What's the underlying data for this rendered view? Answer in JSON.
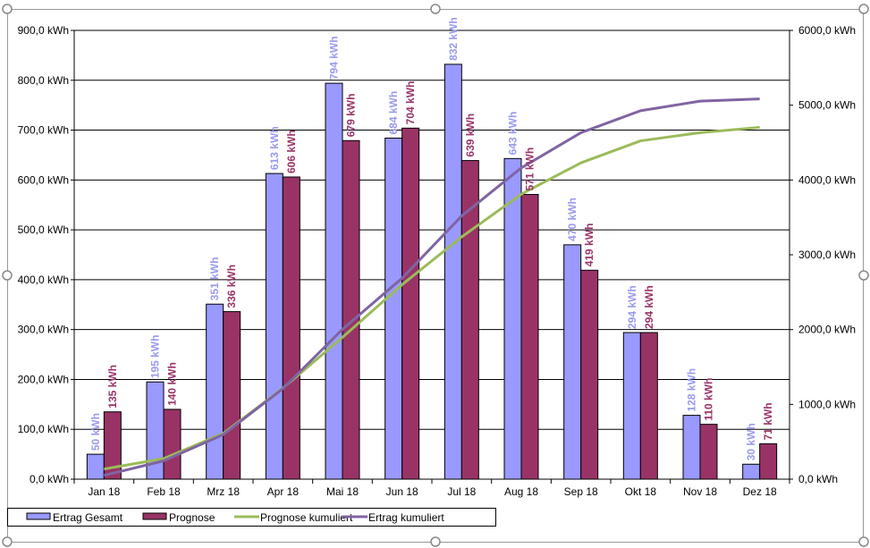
{
  "chart_data": {
    "type": "bar",
    "categories": [
      "Jan 18",
      "Feb 18",
      "Mrz 18",
      "Apr 18",
      "Mai 18",
      "Jun 18",
      "Jul 18",
      "Aug 18",
      "Sep 18",
      "Okt 18",
      "Nov 18",
      "Dez 18"
    ],
    "left_axis": {
      "ylim": [
        0,
        900
      ],
      "ticks": [
        "0,0 kWh",
        "100,0 kWh",
        "200,0 kWh",
        "300,0 kWh",
        "400,0 kWh",
        "500,0 kWh",
        "600,0 kWh",
        "700,0 kWh",
        "800,0 kWh",
        "900,0 kWh"
      ]
    },
    "right_axis": {
      "ylim": [
        0,
        6000
      ],
      "ticks": [
        "0,0 kWh",
        "1000,0 kWh",
        "2000,0 kWh",
        "3000,0 kWh",
        "4000,0 kWh",
        "5000,0 kWh",
        "6000,0 kWh"
      ]
    },
    "series": [
      {
        "name": "Ertrag Gesamt",
        "type": "bar",
        "color": "#9999ff",
        "label_color": "#9999ee",
        "values": [
          50,
          195,
          351,
          613,
          794,
          684,
          832,
          643,
          470,
          294,
          128,
          30
        ],
        "labels": [
          "50 kWh",
          "195 kWh",
          "351 kWh",
          "613 kWh",
          "794 kWh",
          "684 kWh",
          "832 kWh",
          "643 kWh",
          "470 kWh",
          "294 kWh",
          "128 kWh",
          "30 kWh"
        ]
      },
      {
        "name": "Prognose",
        "type": "bar",
        "color": "#993366",
        "label_color": "#993366",
        "values": [
          135,
          140,
          336,
          606,
          679,
          704,
          639,
          571,
          419,
          294,
          110,
          71
        ],
        "labels": [
          "135 kWh",
          "140 kWh",
          "336 kWh",
          "606 kWh",
          "679 kWh",
          "704 kWh",
          "639 kWh",
          "571 kWh",
          "419 kWh",
          "294 kWh",
          "110 kWh",
          "71 kWh"
        ]
      },
      {
        "name": "Prognose kumuliert",
        "type": "line",
        "axis": "right",
        "color": "#9bbb59",
        "values": [
          135,
          275,
          611,
          1217,
          1896,
          2600,
          3239,
          3810,
          4229,
          4523,
          4633,
          4704
        ]
      },
      {
        "name": "Ertrag kumuliert",
        "type": "line",
        "axis": "right",
        "color": "#8064a2",
        "values": [
          50,
          245,
          596,
          1209,
          2003,
          2687,
          3519,
          4162,
          4632,
          4926,
          5054,
          5084
        ]
      }
    ],
    "legend": "bottom",
    "grid": true
  }
}
